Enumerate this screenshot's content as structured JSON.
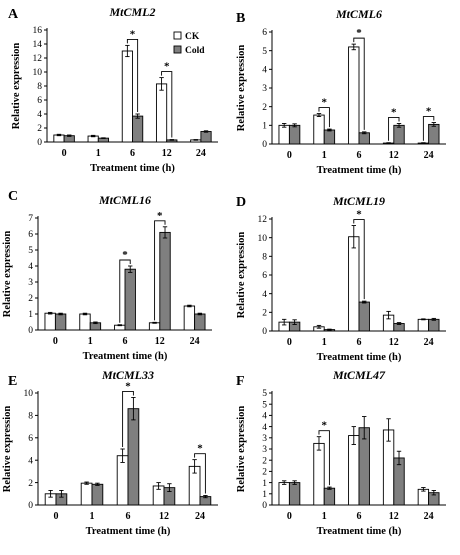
{
  "chart_data": [
    {
      "type": "bar",
      "panel": "A",
      "title": "MtCML2",
      "xlabel": "Treatment time (h)",
      "ylabel": "Relative expression",
      "categories": [
        "0",
        "1",
        "6",
        "12",
        "24"
      ],
      "ylim": [
        0,
        16
      ],
      "yticks": [
        0,
        2,
        4,
        6,
        8,
        10,
        12,
        14,
        16
      ],
      "series": [
        {
          "name": "CK",
          "color": "#ffffff",
          "values": [
            1.0,
            0.85,
            13.0,
            8.3,
            0.3
          ],
          "errors": [
            0.1,
            0.1,
            0.8,
            0.9,
            0.05
          ]
        },
        {
          "name": "Cold",
          "color": "#7f7f7f",
          "values": [
            0.9,
            0.55,
            3.7,
            0.3,
            1.5
          ],
          "errors": [
            0.1,
            0.05,
            0.3,
            0.05,
            0.1
          ]
        }
      ],
      "significance": [
        {
          "category": "6",
          "label": "*"
        },
        {
          "category": "12",
          "label": "*"
        }
      ],
      "legend": "top-right"
    },
    {
      "type": "bar",
      "panel": "B",
      "title": "MtCML6",
      "xlabel": "Treatment time (h)",
      "ylabel": "Relative expression",
      "categories": [
        "0",
        "1",
        "6",
        "12",
        "24"
      ],
      "ylim": [
        0,
        6
      ],
      "yticks": [
        0,
        1,
        2,
        3,
        4,
        5,
        6
      ],
      "series": [
        {
          "name": "CK",
          "color": "#ffffff",
          "values": [
            1.0,
            1.55,
            5.2,
            0.05,
            0.05
          ],
          "errors": [
            0.1,
            0.08,
            0.15,
            0.02,
            0.02
          ]
        },
        {
          "name": "Cold",
          "color": "#7f7f7f",
          "values": [
            1.0,
            0.75,
            0.6,
            1.0,
            1.05
          ],
          "errors": [
            0.08,
            0.05,
            0.05,
            0.1,
            0.1
          ]
        }
      ],
      "significance": [
        {
          "category": "1",
          "label": "*"
        },
        {
          "category": "6",
          "label": "*"
        },
        {
          "category": "12",
          "label": "*"
        },
        {
          "category": "24",
          "label": "*"
        }
      ]
    },
    {
      "type": "bar",
      "panel": "C",
      "title": "MtCML16",
      "xlabel": "Treatment time (h)",
      "ylabel": "Relative expression",
      "categories": [
        "0",
        "1",
        "6",
        "12",
        "24"
      ],
      "ylim": [
        0,
        7
      ],
      "yticks": [
        0,
        1,
        2,
        3,
        4,
        5,
        6,
        7
      ],
      "series": [
        {
          "name": "CK",
          "color": "#ffffff",
          "values": [
            1.05,
            1.0,
            0.3,
            0.45,
            1.5
          ],
          "errors": [
            0.05,
            0.05,
            0.03,
            0.03,
            0.05
          ]
        },
        {
          "name": "Cold",
          "color": "#7f7f7f",
          "values": [
            1.0,
            0.45,
            3.8,
            6.1,
            1.0
          ],
          "errors": [
            0.05,
            0.05,
            0.2,
            0.35,
            0.05
          ]
        }
      ],
      "significance": [
        {
          "category": "6",
          "label": "*"
        },
        {
          "category": "12",
          "label": "*"
        }
      ]
    },
    {
      "type": "bar",
      "panel": "D",
      "title": "MtCML19",
      "xlabel": "Treatment time (h)",
      "ylabel": "Relative expression",
      "categories": [
        "0",
        "1",
        "6",
        "12",
        "24"
      ],
      "ylim": [
        0,
        12
      ],
      "yticks": [
        0,
        2,
        4,
        6,
        8,
        10,
        12
      ],
      "series": [
        {
          "name": "CK",
          "color": "#ffffff",
          "values": [
            0.95,
            0.45,
            10.1,
            1.7,
            1.25
          ],
          "errors": [
            0.3,
            0.15,
            1.2,
            0.4,
            0.05
          ]
        },
        {
          "name": "Cold",
          "color": "#7f7f7f",
          "values": [
            0.95,
            0.15,
            3.1,
            0.8,
            1.25
          ],
          "errors": [
            0.25,
            0.05,
            0.1,
            0.1,
            0.1
          ]
        }
      ],
      "significance": [
        {
          "category": "6",
          "label": "*"
        }
      ]
    },
    {
      "type": "bar",
      "panel": "E",
      "title": "MtCML33",
      "xlabel": "Treatment time (h)",
      "ylabel": "Relative expression",
      "categories": [
        "0",
        "1",
        "6",
        "12",
        "24"
      ],
      "ylim": [
        0,
        10
      ],
      "yticks": [
        0,
        2,
        4,
        6,
        8,
        10
      ],
      "series": [
        {
          "name": "CK",
          "color": "#ffffff",
          "values": [
            1.0,
            1.95,
            4.4,
            1.7,
            3.45
          ],
          "errors": [
            0.3,
            0.1,
            0.6,
            0.3,
            0.6
          ]
        },
        {
          "name": "Cold",
          "color": "#7f7f7f",
          "values": [
            1.0,
            1.85,
            8.6,
            1.55,
            0.75
          ],
          "errors": [
            0.3,
            0.1,
            1.0,
            0.35,
            0.1
          ]
        }
      ],
      "significance": [
        {
          "category": "6",
          "label": "*"
        },
        {
          "category": "24",
          "label": "*"
        }
      ]
    },
    {
      "type": "bar",
      "panel": "F",
      "title": "MtCML47",
      "xlabel": "Treatment time (h)",
      "ylabel": "Relative expression",
      "categories": [
        "0",
        "1",
        "6",
        "12",
        "24"
      ],
      "ylim": [
        0,
        5
      ],
      "yticks": [
        0,
        0.5,
        1,
        1.5,
        2,
        2.5,
        3,
        3.5,
        4,
        4.5,
        5
      ],
      "yticklabels": [
        "0",
        "1",
        "1",
        "2",
        "2",
        "3",
        "3",
        "4",
        "4",
        "5",
        "5"
      ],
      "series": [
        {
          "name": "CK",
          "color": "#ffffff",
          "values": [
            1.0,
            2.75,
            3.1,
            3.35,
            0.7
          ],
          "errors": [
            0.08,
            0.3,
            0.4,
            0.5,
            0.08
          ]
        },
        {
          "name": "Cold",
          "color": "#7f7f7f",
          "values": [
            1.0,
            0.75,
            3.45,
            2.1,
            0.55
          ],
          "errors": [
            0.08,
            0.05,
            0.5,
            0.3,
            0.1
          ]
        }
      ],
      "significance": [
        {
          "category": "1",
          "label": "*"
        }
      ]
    }
  ]
}
